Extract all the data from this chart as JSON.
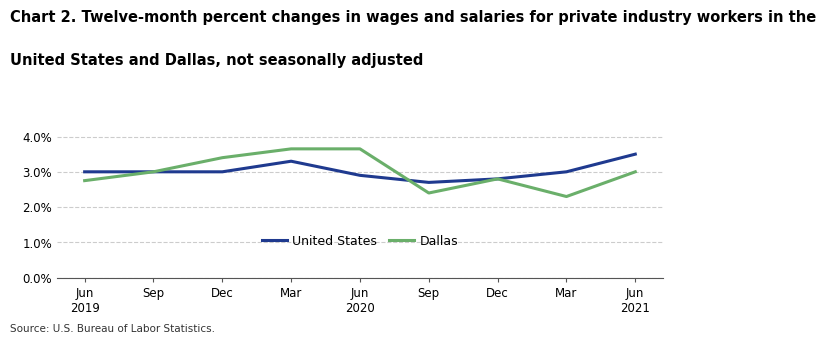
{
  "title_line1": "Chart 2. Twelve-month percent changes in wages and salaries for private industry workers in the",
  "title_line2": "United States and Dallas, not seasonally adjusted",
  "x_labels": [
    "Jun\n2019",
    "Sep",
    "Dec",
    "Mar",
    "Jun\n2020",
    "Sep",
    "Dec",
    "Mar",
    "Jun\n2021"
  ],
  "us_values": [
    3.0,
    3.0,
    3.0,
    3.3,
    2.9,
    2.7,
    2.8,
    3.0,
    3.5
  ],
  "dallas_values": [
    2.75,
    3.0,
    3.4,
    3.65,
    3.65,
    2.4,
    2.8,
    2.3,
    3.0
  ],
  "us_color": "#1F3A8F",
  "dallas_color": "#6AAF6A",
  "us_label": "United States",
  "dallas_label": "Dallas",
  "source": "Source: U.S. Bureau of Labor Statistics.",
  "background_color": "#ffffff",
  "grid_color": "#cccccc",
  "line_width": 2.2,
  "title_fontsize": 10.5,
  "tick_fontsize": 8.5,
  "legend_fontsize": 9.0,
  "source_fontsize": 7.5
}
